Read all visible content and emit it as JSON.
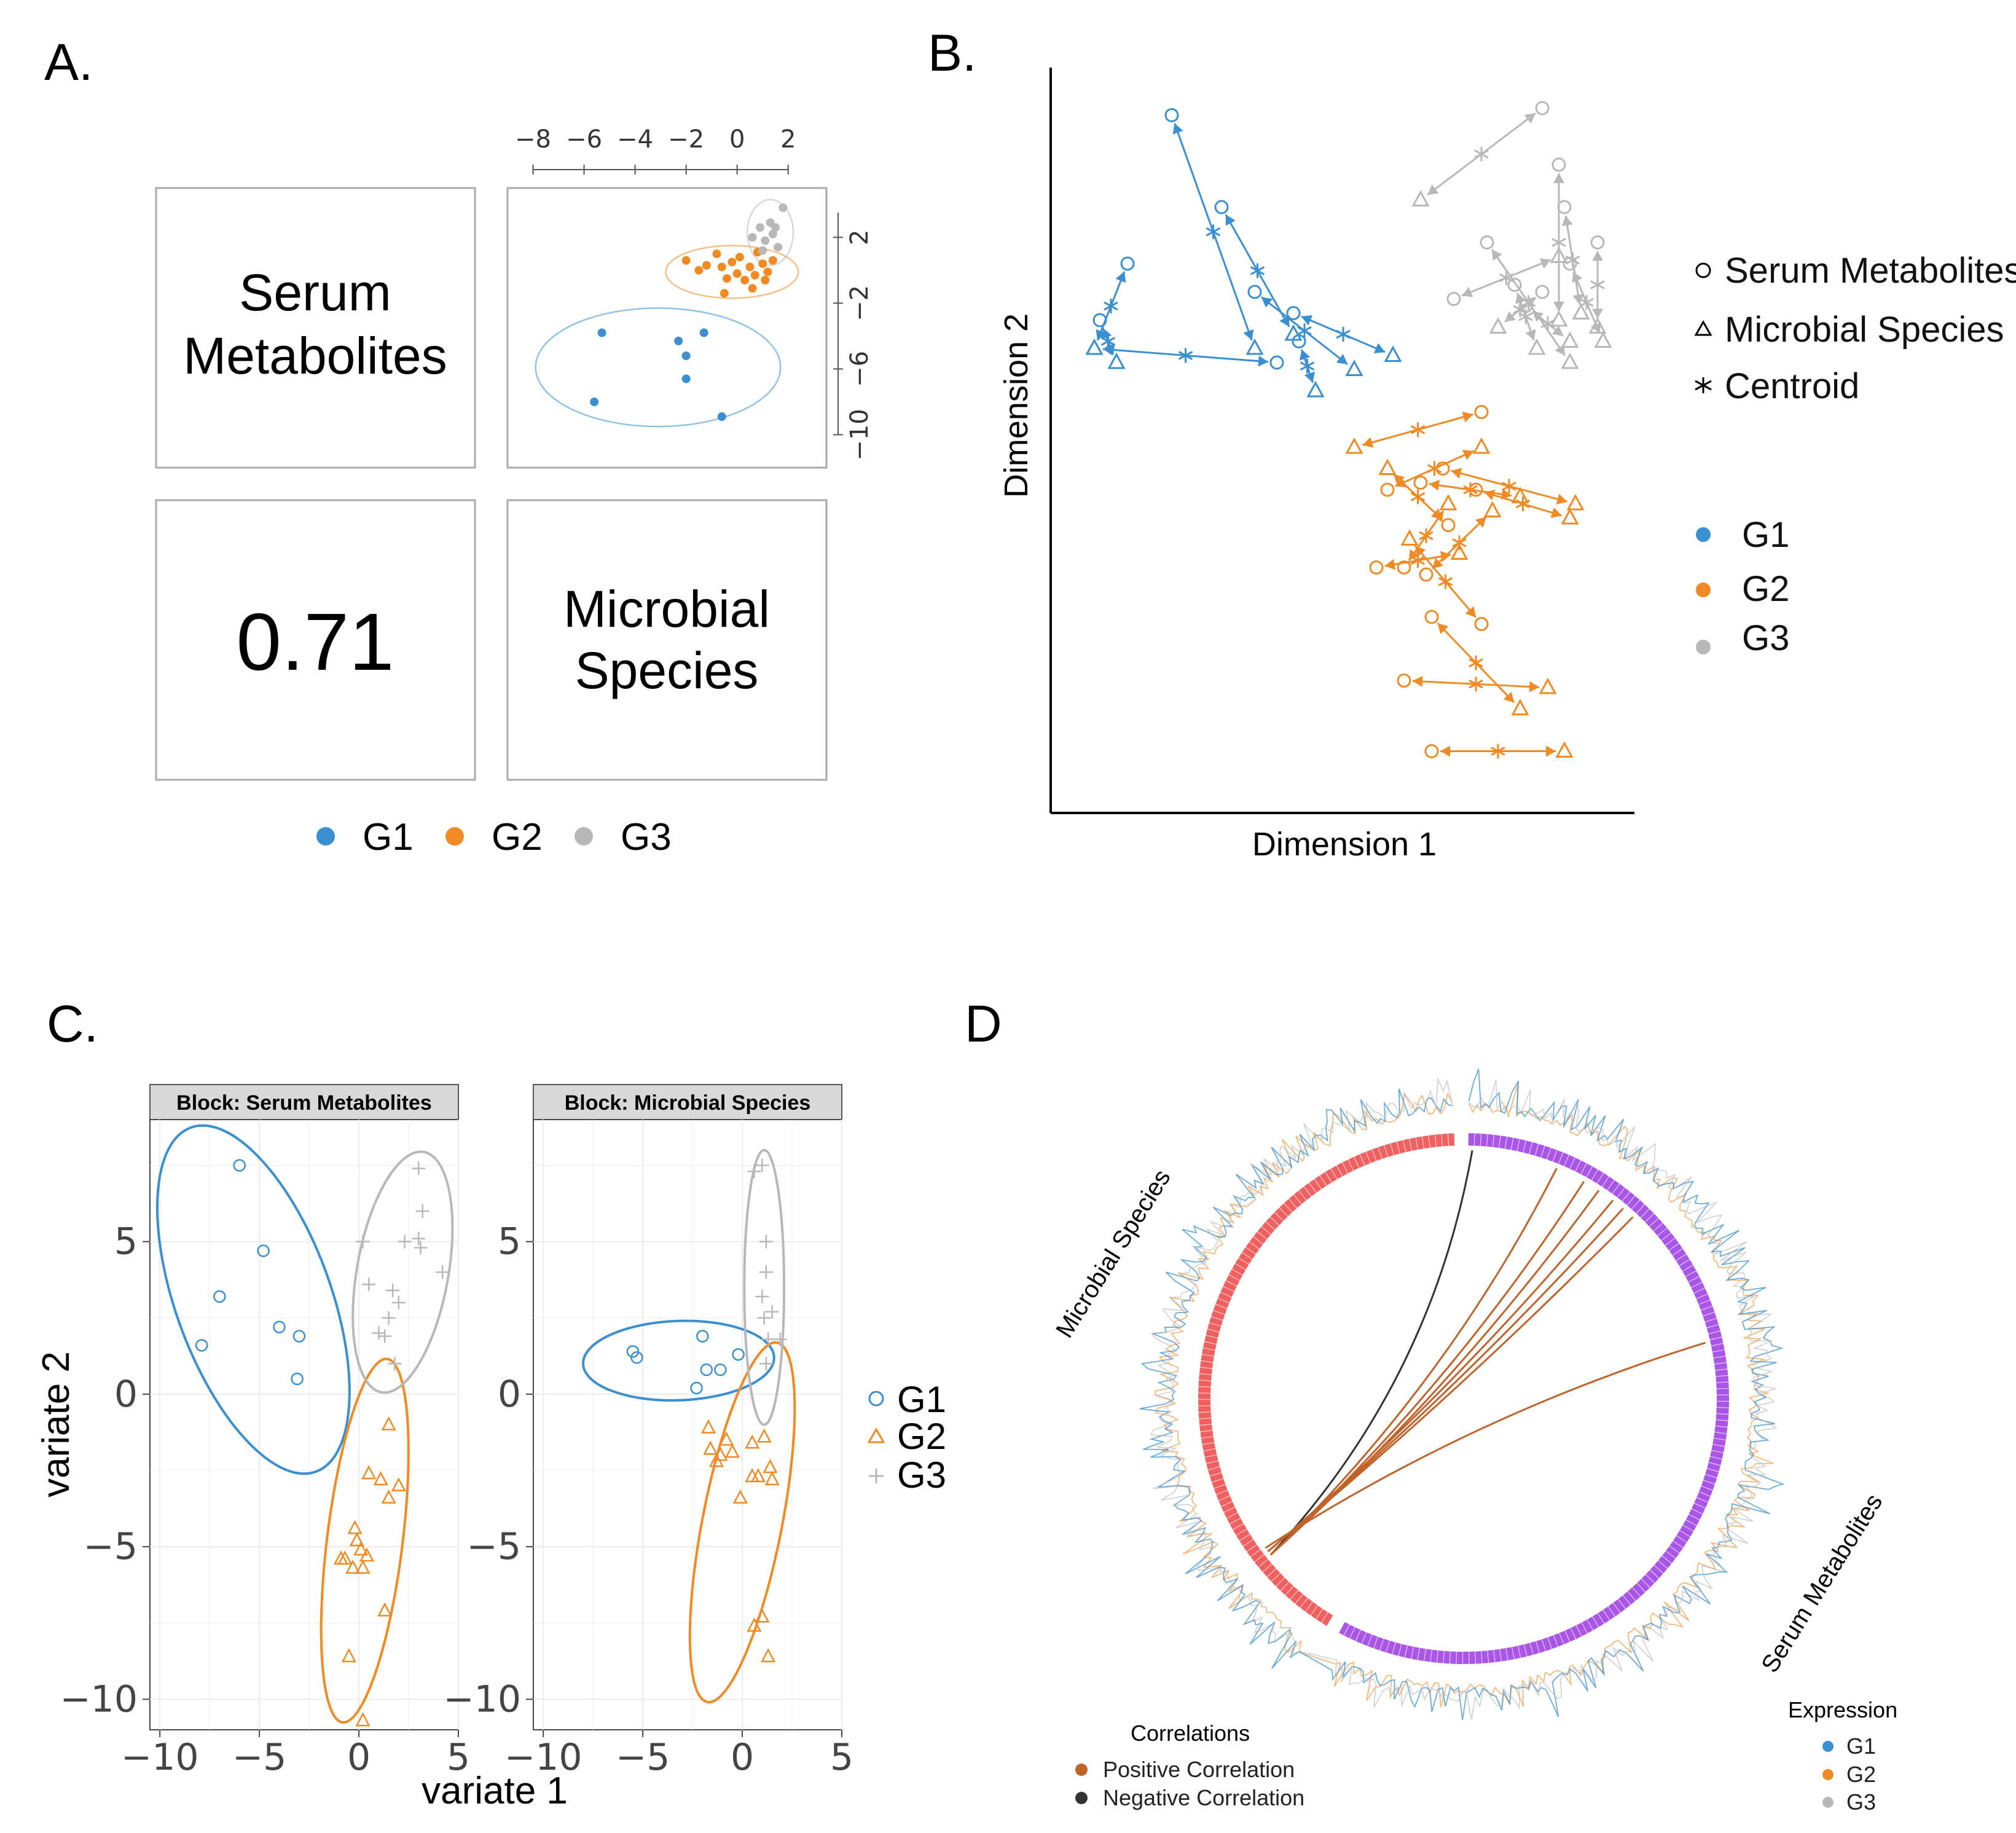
{
  "panel_labels": {
    "a": "A.",
    "b": "B.",
    "c": "C.",
    "d": "D"
  },
  "colors": {
    "G1": "#3a8fd0",
    "G2": "#f08a24",
    "G3": "#b8b8b8",
    "microbial_ring": "#f06060",
    "serum_ring": "#a855e8",
    "pos_corr": "#c0622a",
    "neg_corr": "#333333"
  },
  "chart_data": [
    {
      "panel": "A",
      "type": "scatter",
      "diagonal_labels": [
        "Serum Metabolites",
        "Microbial Species"
      ],
      "diag_text": {
        "serum_l1": "Serum",
        "serum_l2": "Metabolites",
        "micro_l1": "Microbial",
        "micro_l2": "Species"
      },
      "correlation": "0.71",
      "x_ticks": [
        "−8",
        "−6",
        "−4",
        "−2",
        "0",
        "2"
      ],
      "y_ticks": [
        "2",
        "−2",
        "−6",
        "−10"
      ],
      "xlim": [
        -9,
        3.5
      ],
      "ylim": [
        -12,
        5
      ],
      "legend": [
        "G1",
        "G2",
        "G3"
      ],
      "series": [
        {
          "name": "G1",
          "points": [
            [
              -5.3,
              -3.8
            ],
            [
              -2.3,
              -4.3
            ],
            [
              -1.3,
              -3.8
            ],
            [
              -2.0,
              -5.2
            ],
            [
              -2.0,
              -6.6
            ],
            [
              -5.6,
              -8.0
            ],
            [
              -0.6,
              -8.9
            ]
          ]
        },
        {
          "name": "G2",
          "points": [
            [
              -2.0,
              0.6
            ],
            [
              -1.5,
              0.0
            ],
            [
              -1.2,
              0.3
            ],
            [
              -0.8,
              1.0
            ],
            [
              -0.6,
              0.2
            ],
            [
              -0.4,
              -0.5
            ],
            [
              -0.2,
              0.5
            ],
            [
              0.0,
              -0.2
            ],
            [
              0.1,
              0.8
            ],
            [
              0.3,
              -0.6
            ],
            [
              0.5,
              0.2
            ],
            [
              0.7,
              -0.3
            ],
            [
              0.8,
              1.1
            ],
            [
              1.0,
              0.4
            ],
            [
              1.2,
              -0.1
            ],
            [
              1.4,
              0.6
            ],
            [
              0.6,
              -1.1
            ],
            [
              -0.5,
              -1.4
            ],
            [
              1.1,
              -0.6
            ]
          ]
        },
        {
          "name": "G3",
          "points": [
            [
              0.6,
              2.0
            ],
            [
              0.9,
              2.6
            ],
            [
              1.1,
              1.8
            ],
            [
              1.3,
              2.9
            ],
            [
              1.4,
              2.2
            ],
            [
              1.6,
              1.4
            ],
            [
              1.8,
              3.8
            ],
            [
              1.0,
              1.2
            ],
            [
              1.5,
              2.6
            ]
          ]
        }
      ],
      "ellipses": [
        {
          "group": "G1",
          "cx": -3.1,
          "cy": -5.9,
          "rx": 4.8,
          "ry": 3.6
        },
        {
          "group": "G2",
          "cx": -0.2,
          "cy": -0.1,
          "rx": 2.6,
          "ry": 1.6
        },
        {
          "group": "G3",
          "cx": 1.3,
          "cy": 2.3,
          "rx": 0.9,
          "ry": 2.0
        }
      ]
    },
    {
      "panel": "B",
      "type": "scatter",
      "xlabel": "Dimension 1",
      "ylabel": "Dimension 2",
      "xlim": [
        0,
        100
      ],
      "ylim": [
        0,
        100
      ],
      "shape_legend": [
        "Serum Metabolites",
        "Microbial Species",
        "Centroid"
      ],
      "group_legend": [
        "G1",
        "G2",
        "G3"
      ],
      "pairs": [
        {
          "g": "G1",
          "s": [
            18,
            95
          ],
          "m": [
            33,
            62
          ]
        },
        {
          "g": "G1",
          "s": [
            10,
            74
          ],
          "m": [
            4,
            62
          ]
        },
        {
          "g": "G1",
          "s": [
            5,
            66
          ],
          "m": [
            8,
            60
          ]
        },
        {
          "g": "G1",
          "s": [
            27,
            82
          ],
          "m": [
            40,
            64
          ]
        },
        {
          "g": "G1",
          "s": [
            33,
            70
          ],
          "m": [
            51,
            59
          ]
        },
        {
          "g": "G1",
          "s": [
            40,
            67
          ],
          "m": [
            58,
            61
          ]
        },
        {
          "g": "G1",
          "s": [
            37,
            60
          ],
          "m": [
            4,
            62
          ]
        },
        {
          "g": "G1",
          "s": [
            41,
            63
          ],
          "m": [
            44,
            56
          ]
        },
        {
          "g": "G2",
          "s": [
            74,
            53
          ],
          "m": [
            51,
            48
          ]
        },
        {
          "g": "G2",
          "s": [
            57,
            42
          ],
          "m": [
            74,
            48
          ]
        },
        {
          "g": "G2",
          "s": [
            63,
            43
          ],
          "m": [
            81,
            41
          ]
        },
        {
          "g": "G2",
          "s": [
            67,
            45
          ],
          "m": [
            91,
            40
          ]
        },
        {
          "g": "G2",
          "s": [
            73,
            42
          ],
          "m": [
            90,
            38
          ]
        },
        {
          "g": "G2",
          "s": [
            68,
            37
          ],
          "m": [
            57,
            45
          ]
        },
        {
          "g": "G2",
          "s": [
            60,
            31
          ],
          "m": [
            68,
            40
          ]
        },
        {
          "g": "G2",
          "s": [
            64,
            30
          ],
          "m": [
            76,
            39
          ]
        },
        {
          "g": "G2",
          "s": [
            55,
            31
          ],
          "m": [
            70,
            33
          ]
        },
        {
          "g": "G2",
          "s": [
            74,
            23
          ],
          "m": [
            61,
            35
          ]
        },
        {
          "g": "G2",
          "s": [
            60,
            15
          ],
          "m": [
            86,
            14
          ]
        },
        {
          "g": "G2",
          "s": [
            65,
            24
          ],
          "m": [
            81,
            11
          ]
        },
        {
          "g": "G2",
          "s": [
            65,
            5
          ],
          "m": [
            89,
            5
          ]
        },
        {
          "g": "G3",
          "s": [
            85,
            96
          ],
          "m": [
            63,
            83
          ]
        },
        {
          "g": "G3",
          "s": [
            88,
            88
          ],
          "m": [
            88,
            66
          ]
        },
        {
          "g": "G3",
          "s": [
            89,
            82
          ],
          "m": [
            92,
            67
          ]
        },
        {
          "g": "G3",
          "s": [
            75,
            77
          ],
          "m": [
            90,
            60
          ]
        },
        {
          "g": "G3",
          "s": [
            80,
            71
          ],
          "m": [
            84,
            62
          ]
        },
        {
          "g": "G3",
          "s": [
            85,
            70
          ],
          "m": [
            77,
            65
          ]
        },
        {
          "g": "G3",
          "s": [
            90,
            74
          ],
          "m": [
            96,
            63
          ]
        },
        {
          "g": "G3",
          "s": [
            95,
            77
          ],
          "m": [
            95,
            65
          ]
        },
        {
          "g": "G3",
          "s": [
            69,
            69
          ],
          "m": [
            88,
            75
          ]
        },
        {
          "g": "G3",
          "s": [
            82,
            68
          ],
          "m": [
            90,
            63
          ]
        }
      ]
    },
    {
      "panel": "C",
      "type": "scatter",
      "xlabel": "variate 1",
      "ylabel": "variate 2",
      "facets": [
        "Block: Serum Metabolites",
        "Block: Microbial Species"
      ],
      "xlim": [
        -10.5,
        5
      ],
      "ylim": [
        -11,
        9
      ],
      "x_ticks": [
        "−10",
        "−5",
        "0",
        "5"
      ],
      "y_ticks": [
        "5",
        "0",
        "−5",
        "−10"
      ],
      "legend": [
        "G1",
        "G2",
        "G3"
      ],
      "facet_data": [
        {
          "G1": [
            [
              -6,
              7.5
            ],
            [
              -4.8,
              4.7
            ],
            [
              -7,
              3.2
            ],
            [
              -4,
              2.2
            ],
            [
              -3,
              1.9
            ],
            [
              -7.9,
              1.6
            ],
            [
              -3.1,
              0.5
            ]
          ],
          "G2": [
            [
              1.5,
              -1.0
            ],
            [
              0.5,
              -2.6
            ],
            [
              1.1,
              -2.8
            ],
            [
              2.0,
              -3.0
            ],
            [
              1.5,
              -3.4
            ],
            [
              -0.2,
              -4.4
            ],
            [
              -0.1,
              -4.8
            ],
            [
              0.1,
              -5.1
            ],
            [
              -0.7,
              -5.4
            ],
            [
              0.4,
              -5.3
            ],
            [
              -0.9,
              -5.4
            ],
            [
              -0.3,
              -5.7
            ],
            [
              0.2,
              -5.7
            ],
            [
              1.3,
              -7.1
            ],
            [
              -0.5,
              -8.6
            ],
            [
              0.2,
              -10.7
            ]
          ],
          "G3": [
            [
              3.0,
              7.4
            ],
            [
              3.2,
              6.0
            ],
            [
              0.2,
              5.0
            ],
            [
              2.3,
              5.0
            ],
            [
              3.0,
              5.1
            ],
            [
              3.1,
              4.8
            ],
            [
              4.2,
              4.0
            ],
            [
              0.5,
              3.6
            ],
            [
              1.7,
              3.4
            ],
            [
              2.0,
              3.0
            ],
            [
              1.5,
              2.5
            ],
            [
              1.0,
              2.0
            ],
            [
              1.3,
              1.9
            ],
            [
              1.8,
              1.0
            ]
          ]
        },
        {
          "G1": [
            [
              -5.5,
              1.4
            ],
            [
              -5.3,
              1.2
            ],
            [
              -2.0,
              1.9
            ],
            [
              -1.8,
              0.8
            ],
            [
              -1.1,
              0.8
            ],
            [
              -0.2,
              1.3
            ],
            [
              -2.3,
              0.2
            ]
          ],
          "G2": [
            [
              -1.7,
              -1.1
            ],
            [
              -1.6,
              -1.8
            ],
            [
              -1.1,
              -2.0
            ],
            [
              -0.8,
              -1.5
            ],
            [
              -0.5,
              -1.9
            ],
            [
              0.5,
              -1.6
            ],
            [
              1.1,
              -1.4
            ],
            [
              1.4,
              -2.4
            ],
            [
              -1.3,
              -2.2
            ],
            [
              -0.1,
              -3.4
            ],
            [
              0.5,
              -2.7
            ],
            [
              0.8,
              -2.7
            ],
            [
              1.5,
              -2.8
            ],
            [
              0.6,
              -7.6
            ],
            [
              1.0,
              -7.3
            ],
            [
              1.3,
              -8.6
            ]
          ],
          "G3": [
            [
              0.6,
              7.3
            ],
            [
              1.0,
              7.5
            ],
            [
              1.2,
              5.0
            ],
            [
              1.2,
              4.0
            ],
            [
              1.0,
              3.2
            ],
            [
              1.5,
              2.7
            ],
            [
              1.1,
              2.5
            ],
            [
              1.3,
              1.8
            ],
            [
              1.9,
              1.8
            ],
            [
              1.2,
              1.0
            ]
          ]
        }
      ],
      "ellipses": [
        [
          {
            "group": "G1",
            "cx": -5.3,
            "cy": 3.1,
            "rx": 3.9,
            "ry": 6.0,
            "angle": -20
          },
          {
            "group": "G2",
            "cx": 0.3,
            "cy": -4.8,
            "rx": 1.9,
            "ry": 6.0,
            "angle": 7
          },
          {
            "group": "G3",
            "cx": 2.2,
            "cy": 4.0,
            "rx": 2.3,
            "ry": 4.0,
            "angle": 10
          }
        ],
        [
          {
            "group": "G1",
            "cx": -3.2,
            "cy": 1.1,
            "rx": 4.8,
            "ry": 1.3,
            "angle": -2
          },
          {
            "group": "G2",
            "cx": 0.0,
            "cy": -4.2,
            "rx": 2.0,
            "ry": 6.0,
            "angle": 11
          },
          {
            "group": "G3",
            "cx": 1.1,
            "cy": 3.5,
            "rx": 1.0,
            "ry": 4.5,
            "angle": 0
          }
        ]
      ]
    },
    {
      "panel": "D",
      "type": "chord",
      "sectors": [
        "Microbial Species",
        "Serum Metabolites"
      ],
      "correlations_legend": {
        "title": "Correlations",
        "items": [
          "Positive Correlation",
          "Negative Correlation"
        ]
      },
      "expression_legend": {
        "title": "Expression",
        "items": [
          "G1",
          "G2",
          "G3"
        ]
      },
      "links": [
        {
          "type": "negative",
          "from_deg": 231,
          "to_deg": 2
        },
        {
          "type": "positive",
          "from_deg": 231,
          "to_deg": 22
        },
        {
          "type": "positive",
          "from_deg": 231,
          "to_deg": 29
        },
        {
          "type": "positive",
          "from_deg": 231,
          "to_deg": 33
        },
        {
          "type": "positive",
          "from_deg": 232,
          "to_deg": 37
        },
        {
          "type": "positive",
          "from_deg": 232,
          "to_deg": 40
        },
        {
          "type": "positive",
          "from_deg": 232,
          "to_deg": 43
        },
        {
          "type": "positive",
          "from_deg": 233,
          "to_deg": 77
        }
      ]
    }
  ]
}
